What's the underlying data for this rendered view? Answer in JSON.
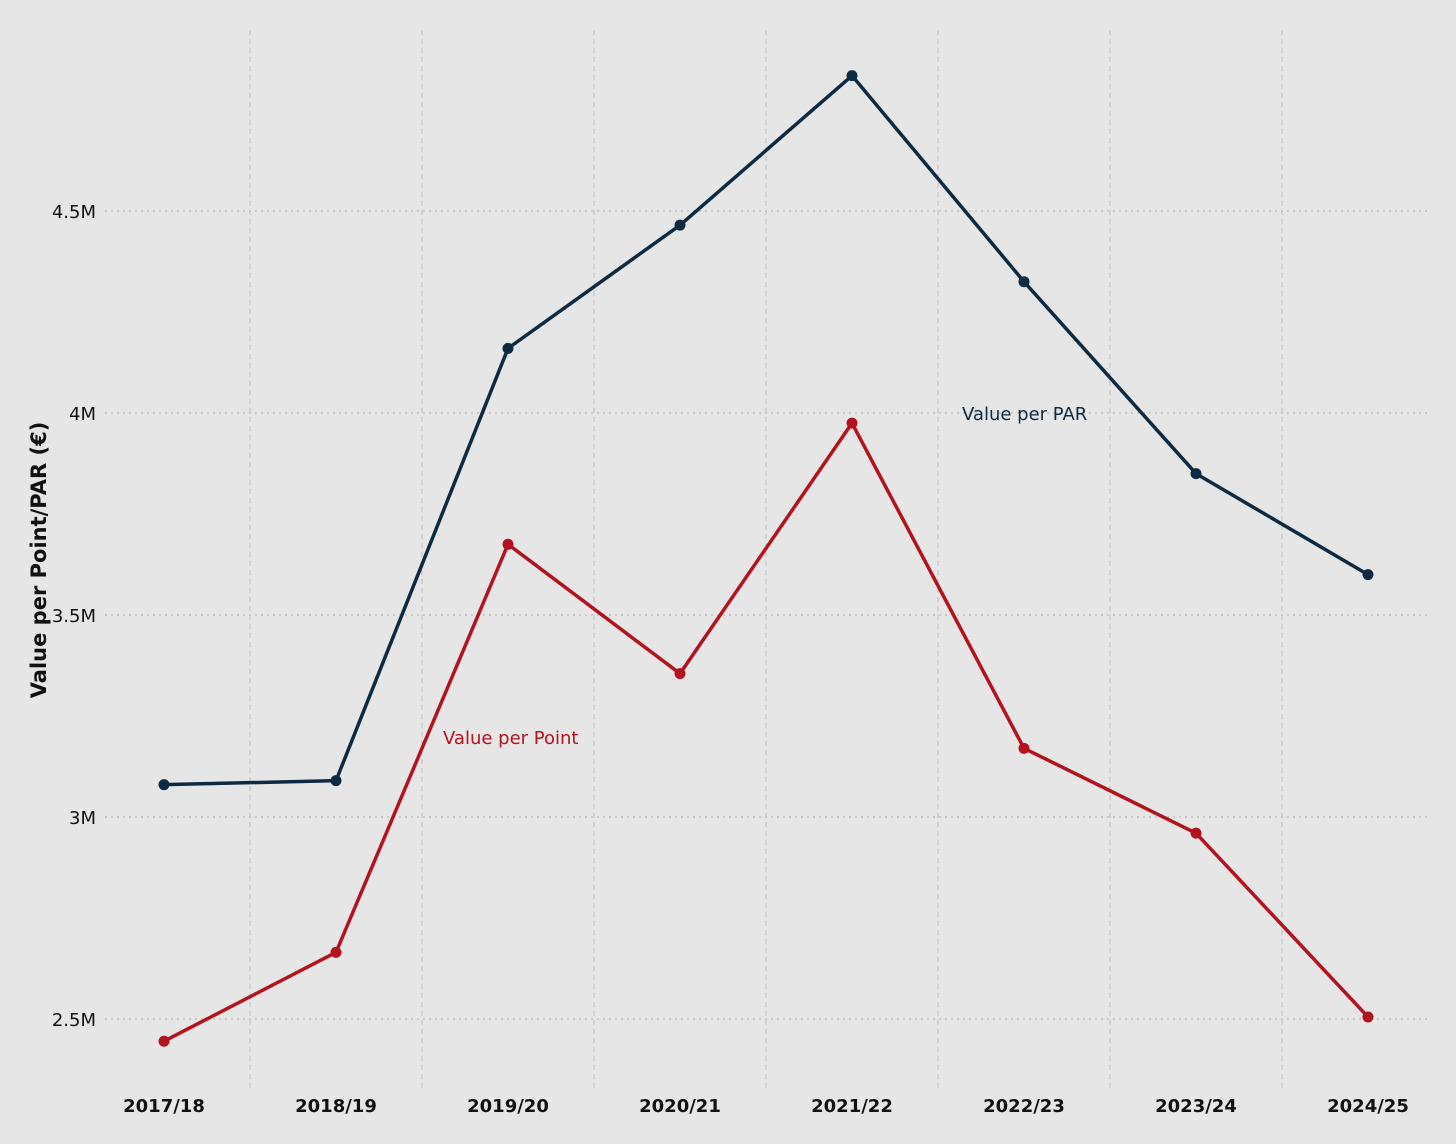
{
  "chart_data": {
    "type": "line",
    "title": "",
    "xlabel": "",
    "ylabel": "Value per Point/PAR (€)",
    "categories": [
      "2017/18",
      "2018/19",
      "2019/20",
      "2020/21",
      "2021/22",
      "2022/23",
      "2023/24",
      "2024/25"
    ],
    "y_ticks": [
      2500000,
      3000000,
      3500000,
      4000000,
      4500000
    ],
    "y_tick_labels": [
      "2.5M",
      "3M",
      "3.5M",
      "4M",
      "4.5M"
    ],
    "ylim": [
      2380000,
      4960000
    ],
    "grid": true,
    "legend": "direct labels on lines",
    "series": [
      {
        "name": "Value per PAR",
        "color": "#0e2a42",
        "values": [
          3080000,
          3090000,
          4160000,
          4465000,
          4835000,
          4325000,
          3850000,
          3600000
        ]
      },
      {
        "name": "Value per Point",
        "color": "#b3121f",
        "values": [
          2445000,
          2665000,
          3675000,
          3355000,
          3975000,
          3170000,
          2960000,
          2505000
        ]
      }
    ]
  }
}
